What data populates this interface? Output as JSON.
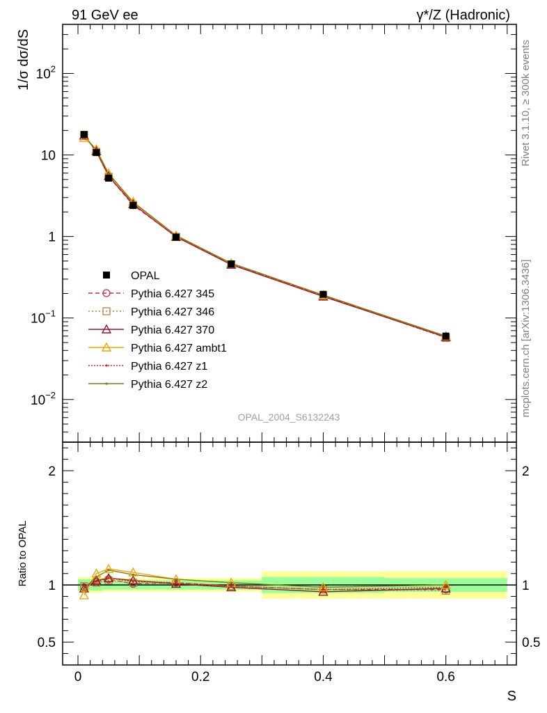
{
  "chart_data": {
    "type": "line",
    "title_left": "91 GeV ee",
    "title_right": "γ*/Z (Hadronic)",
    "ylabel": "1/σ dσ/dS",
    "xlabel": "S",
    "ratio_ylabel": "Ratio to OPAL",
    "analysis_label": "OPAL_2004_S6132243",
    "side_label_top": "Rivet 3.1.10, ≥ 300k events",
    "side_label_bottom": "mcplots.cern.ch [arXiv:1306.3436]",
    "xlim": [
      -0.025,
      0.715
    ],
    "ylim": [
      0.003,
      400
    ],
    "ratio_ylim": [
      0.3,
      2.25
    ],
    "x_ticks": [
      "0",
      "0.2",
      "0.4",
      "0.6"
    ],
    "x_tick_values": [
      0,
      0.2,
      0.4,
      0.6
    ],
    "y_ticks": [
      {
        "value": 0.01,
        "base": "10",
        "exp": "−2"
      },
      {
        "value": 0.1,
        "base": "10",
        "exp": "−1"
      },
      {
        "value": 1,
        "base": "1",
        "exp": ""
      },
      {
        "value": 10,
        "base": "10",
        "exp": ""
      },
      {
        "value": 100,
        "base": "10",
        "exp": "2"
      }
    ],
    "ratio_ticks": [
      "0.5",
      "1",
      "2"
    ],
    "ratio_tick_values": [
      0.5,
      1,
      2
    ],
    "data": {
      "name": "OPAL",
      "x": [
        0.01,
        0.03,
        0.05,
        0.09,
        0.16,
        0.25,
        0.4,
        0.6
      ],
      "y": [
        17.8,
        10.7,
        5.2,
        2.4,
        0.98,
        0.46,
        0.195,
        0.06
      ],
      "bins": [
        [
          0.0,
          0.02
        ],
        [
          0.02,
          0.04
        ],
        [
          0.04,
          0.06
        ],
        [
          0.06,
          0.12
        ],
        [
          0.12,
          0.2
        ],
        [
          0.2,
          0.3
        ],
        [
          0.3,
          0.5
        ],
        [
          0.5,
          0.7
        ]
      ],
      "band_inner": [
        0.05,
        0.05,
        0.04,
        0.04,
        0.04,
        0.04,
        0.07,
        0.06
      ],
      "band_outer": [
        0.07,
        0.07,
        0.06,
        0.06,
        0.06,
        0.06,
        0.12,
        0.12
      ]
    },
    "series": [
      {
        "name": "Pythia 6.427 345",
        "color": "#c0304a",
        "dash": "6,4",
        "marker": "circle",
        "ratio": [
          0.98,
          1.03,
          1.05,
          1.01,
          1.02,
          0.99,
          0.96,
          0.96
        ]
      },
      {
        "name": "Pythia 6.427 346",
        "color": "#b8823a",
        "dash": "2,3",
        "marker": "square",
        "ratio": [
          0.99,
          1.02,
          1.04,
          1.02,
          1.01,
          0.99,
          0.96,
          0.95
        ]
      },
      {
        "name": "Pythia 6.427 370",
        "color": "#8b1a2a",
        "dash": "",
        "marker": "triangle",
        "ratio": [
          0.97,
          1.04,
          1.06,
          1.04,
          1.01,
          0.98,
          0.94,
          0.97
        ]
      },
      {
        "name": "Pythia 6.427 ambt1",
        "color": "#f0a500",
        "dash": "",
        "marker": "triangle",
        "ratio": [
          0.91,
          1.1,
          1.14,
          1.11,
          1.05,
          1.02,
          0.98,
          1.0
        ]
      },
      {
        "name": "Pythia 6.427 z1",
        "color": "#e0201a",
        "dash": "2,2",
        "marker": "dot",
        "ratio": [
          0.99,
          1.03,
          1.06,
          1.03,
          1.02,
          0.99,
          0.96,
          0.98
        ]
      },
      {
        "name": "Pythia 6.427 z2",
        "color": "#7a7a1a",
        "dash": "",
        "marker": "dot",
        "ratio": [
          0.97,
          1.07,
          1.13,
          1.09,
          1.05,
          1.02,
          0.98,
          1.0
        ]
      }
    ]
  }
}
